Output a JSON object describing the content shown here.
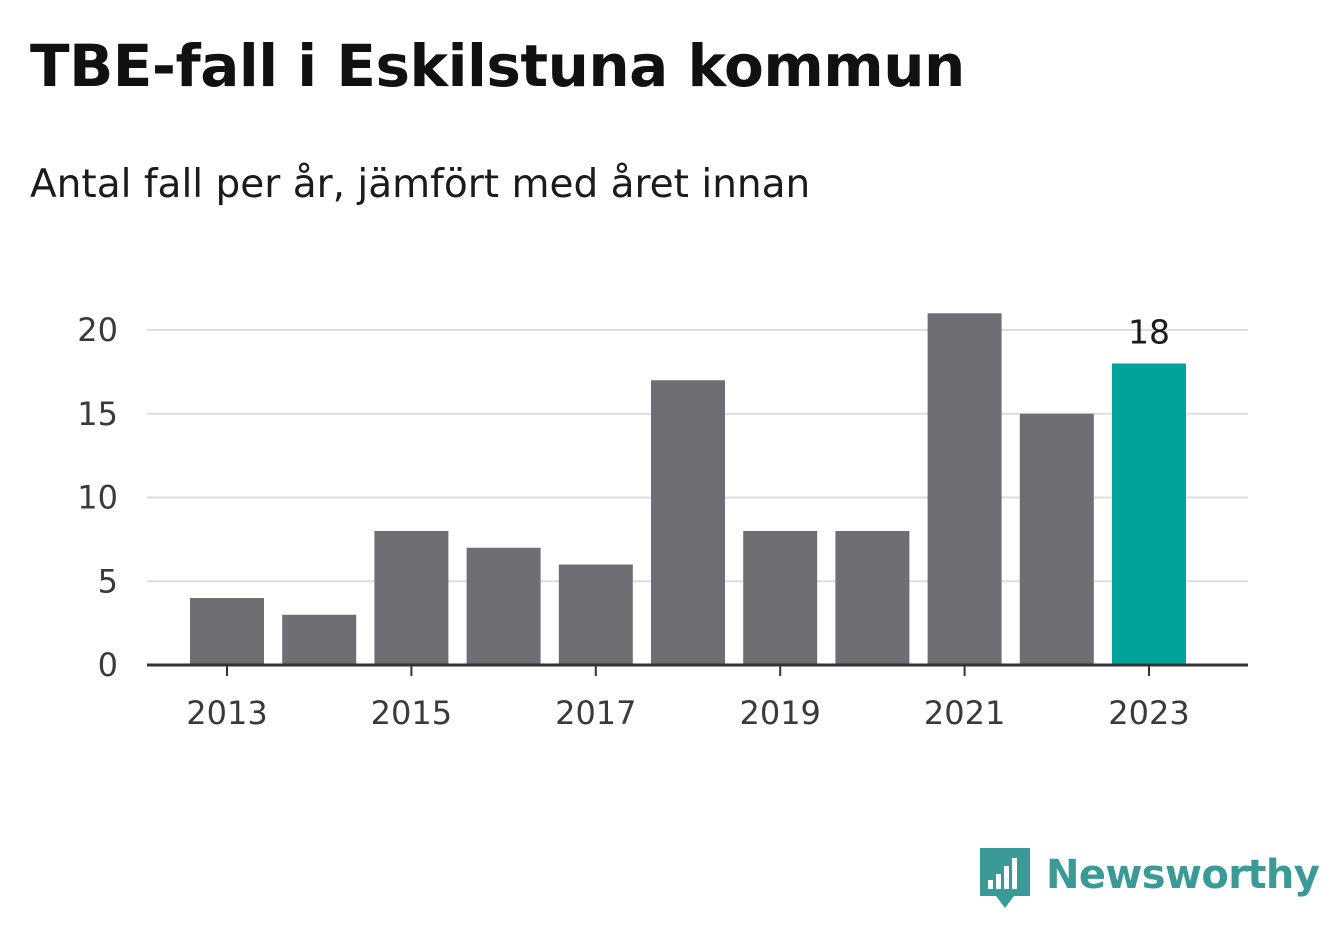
{
  "title": "TBE-fall i Eskilstuna kommun",
  "subtitle": "Antal fall per år, jämfört med året innan",
  "brand": {
    "name": "Newsworthy",
    "icon": "newsworthy-logo-icon",
    "color": "#3a9a95"
  },
  "colors": {
    "bar": "#6f6e75",
    "highlight": "#00a39a",
    "grid": "#dedede",
    "axis": "#333333"
  },
  "chart_data": {
    "type": "bar",
    "title": "TBE-fall i Eskilstuna kommun",
    "subtitle": "Antal fall per år, jämfört med året innan",
    "xlabel": "",
    "ylabel": "",
    "categories": [
      "2013",
      "2014",
      "2015",
      "2016",
      "2017",
      "2018",
      "2019",
      "2020",
      "2021",
      "2022",
      "2023"
    ],
    "values": [
      4,
      3,
      8,
      7,
      6,
      17,
      8,
      8,
      21,
      15,
      18
    ],
    "ylim": [
      0,
      20
    ],
    "yticks": [
      0,
      5,
      10,
      15,
      20
    ],
    "xticks": [
      "2013",
      "2015",
      "2017",
      "2019",
      "2021",
      "2023"
    ],
    "highlight_category": "2023",
    "data_labels": [
      {
        "category": "2023",
        "text": "18"
      }
    ],
    "grid": true,
    "legend": "none"
  }
}
